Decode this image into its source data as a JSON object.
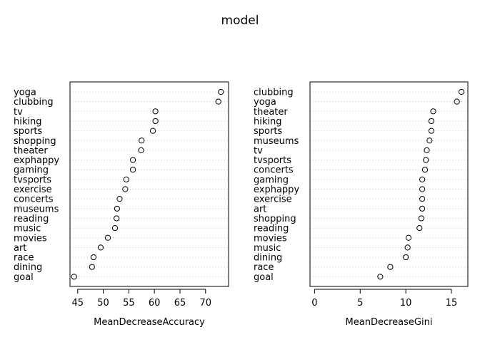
{
  "figure": {
    "title": "model"
  },
  "chart_data": [
    {
      "type": "scatter",
      "subtype": "dotchart",
      "xlabel": "MeanDecreaseAccuracy",
      "xlim": [
        43.5,
        74.5
      ],
      "xticks": [
        45,
        50,
        55,
        60,
        65,
        70
      ],
      "categories": [
        "yoga",
        "clubbing",
        "tv",
        "hiking",
        "sports",
        "shopping",
        "theater",
        "exphappy",
        "gaming",
        "tvsports",
        "exercise",
        "concerts",
        "museums",
        "reading",
        "music",
        "movies",
        "art",
        "race",
        "dining",
        "goal"
      ],
      "values": [
        73.0,
        72.5,
        60.2,
        60.2,
        59.7,
        57.5,
        57.4,
        55.8,
        55.8,
        54.5,
        54.3,
        53.2,
        52.7,
        52.6,
        52.3,
        50.9,
        49.5,
        48.1,
        47.8,
        44.3
      ],
      "grid": "dotted-horizontal"
    },
    {
      "type": "scatter",
      "subtype": "dotchart",
      "xlabel": "MeanDecreaseGini",
      "xlim": [
        -0.5,
        16.8
      ],
      "xticks": [
        0,
        5,
        10,
        15
      ],
      "categories": [
        "clubbing",
        "yoga",
        "theater",
        "hiking",
        "sports",
        "museums",
        "tv",
        "tvsports",
        "concerts",
        "gaming",
        "exphappy",
        "exercise",
        "art",
        "shopping",
        "reading",
        "movies",
        "music",
        "dining",
        "race",
        "goal"
      ],
      "values": [
        16.1,
        15.6,
        13.0,
        12.8,
        12.8,
        12.6,
        12.3,
        12.2,
        12.1,
        11.8,
        11.8,
        11.8,
        11.8,
        11.7,
        11.5,
        10.3,
        10.2,
        10.0,
        8.3,
        7.2
      ],
      "grid": "dotted-horizontal"
    }
  ]
}
